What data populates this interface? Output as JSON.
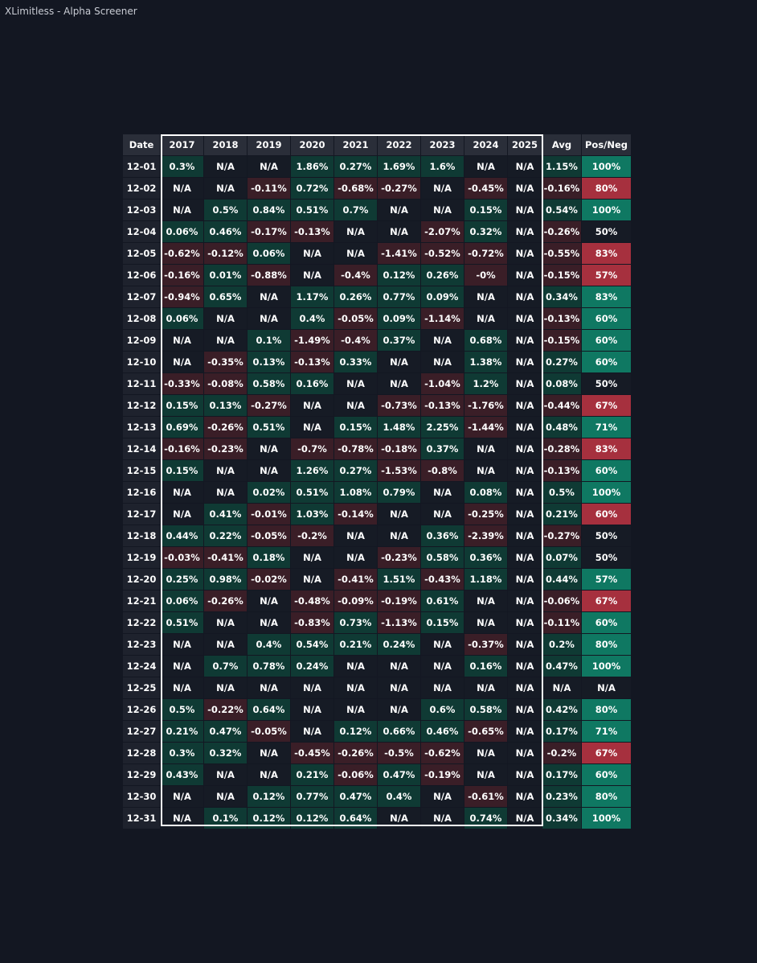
{
  "app": {
    "title": "XLimitless - Alpha Screener"
  },
  "table": {
    "headers": [
      "Date",
      "2017",
      "2018",
      "2019",
      "2020",
      "2021",
      "2022",
      "2023",
      "2024",
      "2025",
      "Avg",
      "Pos/Neg"
    ],
    "rows": [
      [
        "12-01",
        "0.3%",
        "N/A",
        "N/A",
        "1.86%",
        "0.27%",
        "1.69%",
        "1.6%",
        "N/A",
        "N/A",
        "1.15%",
        "100%"
      ],
      [
        "12-02",
        "N/A",
        "N/A",
        "-0.11%",
        "0.72%",
        "-0.68%",
        "-0.27%",
        "N/A",
        "-0.45%",
        "N/A",
        "-0.16%",
        "80%"
      ],
      [
        "12-03",
        "N/A",
        "0.5%",
        "0.84%",
        "0.51%",
        "0.7%",
        "N/A",
        "N/A",
        "0.15%",
        "N/A",
        "0.54%",
        "100%"
      ],
      [
        "12-04",
        "0.06%",
        "0.46%",
        "-0.17%",
        "-0.13%",
        "N/A",
        "N/A",
        "-2.07%",
        "0.32%",
        "N/A",
        "-0.26%",
        "50%"
      ],
      [
        "12-05",
        "-0.62%",
        "-0.12%",
        "0.06%",
        "N/A",
        "N/A",
        "-1.41%",
        "-0.52%",
        "-0.72%",
        "N/A",
        "-0.55%",
        "83%"
      ],
      [
        "12-06",
        "-0.16%",
        "0.01%",
        "-0.88%",
        "N/A",
        "-0.4%",
        "0.12%",
        "0.26%",
        "-0%",
        "N/A",
        "-0.15%",
        "57%"
      ],
      [
        "12-07",
        "-0.94%",
        "0.65%",
        "N/A",
        "1.17%",
        "0.26%",
        "0.77%",
        "0.09%",
        "N/A",
        "N/A",
        "0.34%",
        "83%"
      ],
      [
        "12-08",
        "0.06%",
        "N/A",
        "N/A",
        "0.4%",
        "-0.05%",
        "0.09%",
        "-1.14%",
        "N/A",
        "N/A",
        "-0.13%",
        "60%"
      ],
      [
        "12-09",
        "N/A",
        "N/A",
        "0.1%",
        "-1.49%",
        "-0.4%",
        "0.37%",
        "N/A",
        "0.68%",
        "N/A",
        "-0.15%",
        "60%"
      ],
      [
        "12-10",
        "N/A",
        "-0.35%",
        "0.13%",
        "-0.13%",
        "0.33%",
        "N/A",
        "N/A",
        "1.38%",
        "N/A",
        "0.27%",
        "60%"
      ],
      [
        "12-11",
        "-0.33%",
        "-0.08%",
        "0.58%",
        "0.16%",
        "N/A",
        "N/A",
        "-1.04%",
        "1.2%",
        "N/A",
        "0.08%",
        "50%"
      ],
      [
        "12-12",
        "0.15%",
        "0.13%",
        "-0.27%",
        "N/A",
        "N/A",
        "-0.73%",
        "-0.13%",
        "-1.76%",
        "N/A",
        "-0.44%",
        "67%"
      ],
      [
        "12-13",
        "0.69%",
        "-0.26%",
        "0.51%",
        "N/A",
        "0.15%",
        "1.48%",
        "2.25%",
        "-1.44%",
        "N/A",
        "0.48%",
        "71%"
      ],
      [
        "12-14",
        "-0.16%",
        "-0.23%",
        "N/A",
        "-0.7%",
        "-0.78%",
        "-0.18%",
        "0.37%",
        "N/A",
        "N/A",
        "-0.28%",
        "83%"
      ],
      [
        "12-15",
        "0.15%",
        "N/A",
        "N/A",
        "1.26%",
        "0.27%",
        "-1.53%",
        "-0.8%",
        "N/A",
        "N/A",
        "-0.13%",
        "60%"
      ],
      [
        "12-16",
        "N/A",
        "N/A",
        "0.02%",
        "0.51%",
        "1.08%",
        "0.79%",
        "N/A",
        "0.08%",
        "N/A",
        "0.5%",
        "100%"
      ],
      [
        "12-17",
        "N/A",
        "0.41%",
        "-0.01%",
        "1.03%",
        "-0.14%",
        "N/A",
        "N/A",
        "-0.25%",
        "N/A",
        "0.21%",
        "60%"
      ],
      [
        "12-18",
        "0.44%",
        "0.22%",
        "-0.05%",
        "-0.2%",
        "N/A",
        "N/A",
        "0.36%",
        "-2.39%",
        "N/A",
        "-0.27%",
        "50%"
      ],
      [
        "12-19",
        "-0.03%",
        "-0.41%",
        "0.18%",
        "N/A",
        "N/A",
        "-0.23%",
        "0.58%",
        "0.36%",
        "N/A",
        "0.07%",
        "50%"
      ],
      [
        "12-20",
        "0.25%",
        "0.98%",
        "-0.02%",
        "N/A",
        "-0.41%",
        "1.51%",
        "-0.43%",
        "1.18%",
        "N/A",
        "0.44%",
        "57%"
      ],
      [
        "12-21",
        "0.06%",
        "-0.26%",
        "N/A",
        "-0.48%",
        "-0.09%",
        "-0.19%",
        "0.61%",
        "N/A",
        "N/A",
        "-0.06%",
        "67%"
      ],
      [
        "12-22",
        "0.51%",
        "N/A",
        "N/A",
        "-0.83%",
        "0.73%",
        "-1.13%",
        "0.15%",
        "N/A",
        "N/A",
        "-0.11%",
        "60%"
      ],
      [
        "12-23",
        "N/A",
        "N/A",
        "0.4%",
        "0.54%",
        "0.21%",
        "0.24%",
        "N/A",
        "-0.37%",
        "N/A",
        "0.2%",
        "80%"
      ],
      [
        "12-24",
        "N/A",
        "0.7%",
        "0.78%",
        "0.24%",
        "N/A",
        "N/A",
        "N/A",
        "0.16%",
        "N/A",
        "0.47%",
        "100%"
      ],
      [
        "12-25",
        "N/A",
        "N/A",
        "N/A",
        "N/A",
        "N/A",
        "N/A",
        "N/A",
        "N/A",
        "N/A",
        "N/A",
        "N/A"
      ],
      [
        "12-26",
        "0.5%",
        "-0.22%",
        "0.64%",
        "N/A",
        "N/A",
        "N/A",
        "0.6%",
        "0.58%",
        "N/A",
        "0.42%",
        "80%"
      ],
      [
        "12-27",
        "0.21%",
        "0.47%",
        "-0.05%",
        "N/A",
        "0.12%",
        "0.66%",
        "0.46%",
        "-0.65%",
        "N/A",
        "0.17%",
        "71%"
      ],
      [
        "12-28",
        "0.3%",
        "0.32%",
        "N/A",
        "-0.45%",
        "-0.26%",
        "-0.5%",
        "-0.62%",
        "N/A",
        "N/A",
        "-0.2%",
        "67%"
      ],
      [
        "12-29",
        "0.43%",
        "N/A",
        "N/A",
        "0.21%",
        "-0.06%",
        "0.47%",
        "-0.19%",
        "N/A",
        "N/A",
        "0.17%",
        "60%"
      ],
      [
        "12-30",
        "N/A",
        "N/A",
        "0.12%",
        "0.77%",
        "0.47%",
        "0.4%",
        "N/A",
        "-0.61%",
        "N/A",
        "0.23%",
        "80%"
      ],
      [
        "12-31",
        "N/A",
        "0.1%",
        "0.12%",
        "0.12%",
        "0.64%",
        "N/A",
        "N/A",
        "0.74%",
        "N/A",
        "0.34%",
        "100%"
      ]
    ],
    "posneg_sign": [
      1,
      -1,
      1,
      0,
      -1,
      -1,
      1,
      1,
      1,
      1,
      0,
      -1,
      1,
      -1,
      1,
      1,
      -1,
      0,
      0,
      1,
      -1,
      1,
      1,
      1,
      0,
      1,
      1,
      -1,
      1,
      1,
      1
    ]
  },
  "colors": {
    "background": "#131722",
    "header": "#2a2e39",
    "cell_positive": "#0f3a34",
    "cell_negative": "#3a1e27",
    "posneg_positive": "#0f7862",
    "posneg_negative": "#a6303e"
  }
}
